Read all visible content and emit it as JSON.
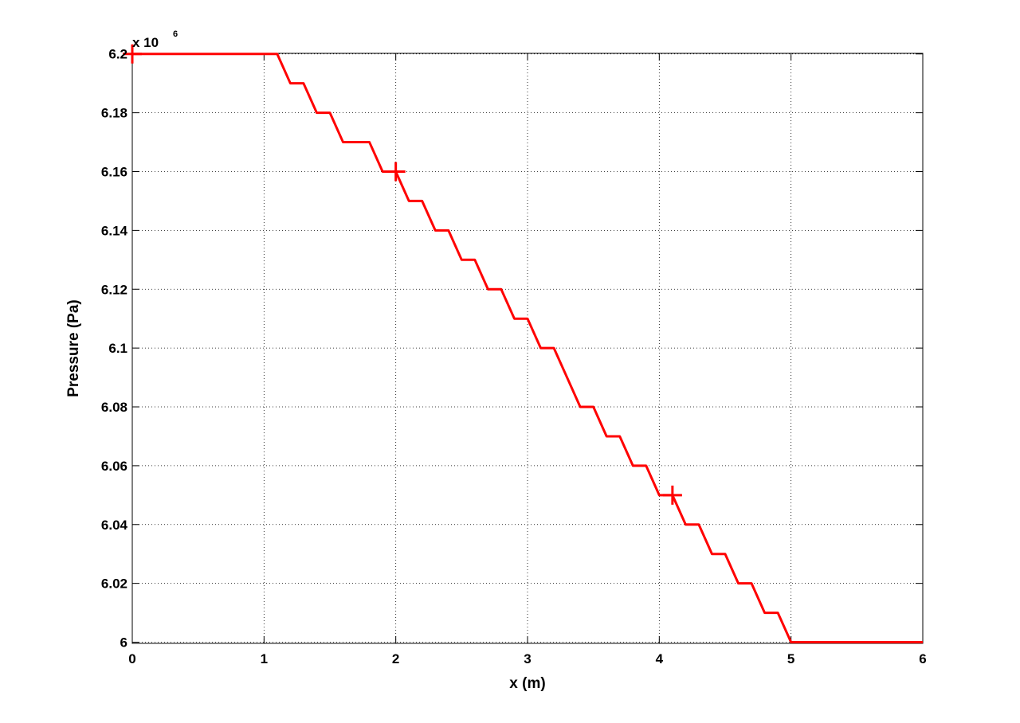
{
  "chart_data": {
    "type": "line",
    "xlabel": "x (m)",
    "ylabel": "Pressure (Pa)",
    "xlim": [
      0,
      6
    ],
    "ylim": [
      5999600,
      6200200
    ],
    "y_multiplier_label": "x 10",
    "y_multiplier_exponent": "6",
    "x_ticks": [
      0,
      1,
      2,
      3,
      4,
      5,
      6
    ],
    "x_tick_labels": [
      "0",
      "1",
      "2",
      "3",
      "4",
      "5",
      "6"
    ],
    "y_ticks": [
      6000000,
      6020000,
      6040000,
      6060000,
      6080000,
      6100000,
      6120000,
      6140000,
      6160000,
      6180000,
      6200000
    ],
    "y_tick_labels": [
      "6",
      "6.02",
      "6.04",
      "6.06",
      "6.08",
      "6.1",
      "6.12",
      "6.14",
      "6.16",
      "6.18",
      "6.2"
    ],
    "grid": true,
    "grid_style": "dotted",
    "series": [
      {
        "color": "#ff0000",
        "x": [
          0,
          1.1,
          1.2,
          1.3,
          1.4,
          1.5,
          1.6,
          1.8,
          1.9,
          2.0,
          2.1,
          2.2,
          2.3,
          2.4,
          2.5,
          2.6,
          2.7,
          2.8,
          2.9,
          3.0,
          3.1,
          3.2,
          3.3,
          3.4,
          3.5,
          3.6,
          3.7,
          3.8,
          3.9,
          4.0,
          4.1,
          4.2,
          4.3,
          4.4,
          4.5,
          4.6,
          4.7,
          4.8,
          4.9,
          5.0,
          6.0
        ],
        "y": [
          6200000,
          6200000,
          6190000,
          6190000,
          6180000,
          6180000,
          6170000,
          6170000,
          6160000,
          6160000,
          6150000,
          6150000,
          6140000,
          6140000,
          6130000,
          6130000,
          6120000,
          6120000,
          6110000,
          6110000,
          6100000,
          6100000,
          6090000,
          6080000,
          6080000,
          6070000,
          6070000,
          6060000,
          6060000,
          6050000,
          6050000,
          6040000,
          6040000,
          6030000,
          6030000,
          6020000,
          6020000,
          6010000,
          6010000,
          6000000,
          6000000
        ]
      }
    ],
    "markers": {
      "symbol": "+",
      "color": "#ff0000",
      "points": [
        {
          "x": 0,
          "y": 6200000
        },
        {
          "x": 2.0,
          "y": 6160000
        },
        {
          "x": 4.1,
          "y": 6050000
        }
      ]
    }
  }
}
